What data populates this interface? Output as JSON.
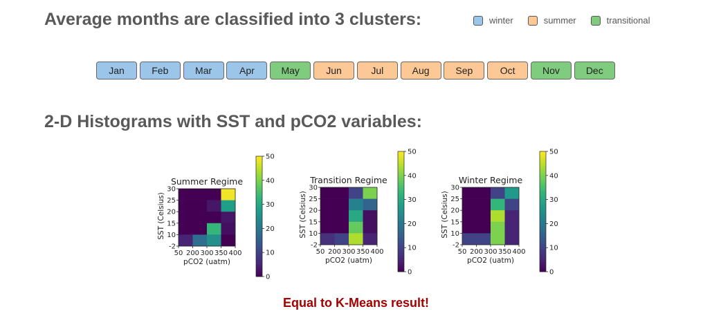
{
  "heading_clusters": "Average months are classified into 3 clusters:",
  "legend": [
    {
      "label": "winter",
      "color": "#9cc5ea"
    },
    {
      "label": "summer",
      "color": "#fcc896"
    },
    {
      "label": "transitional",
      "color": "#7fcc7f"
    }
  ],
  "months": [
    {
      "label": "Jan",
      "cluster": "winter"
    },
    {
      "label": "Feb",
      "cluster": "winter"
    },
    {
      "label": "Mar",
      "cluster": "winter"
    },
    {
      "label": "Apr",
      "cluster": "winter"
    },
    {
      "label": "May",
      "cluster": "transitional"
    },
    {
      "label": "Jun",
      "cluster": "summer"
    },
    {
      "label": "Jul",
      "cluster": "summer"
    },
    {
      "label": "Aug",
      "cluster": "summer"
    },
    {
      "label": "Sep",
      "cluster": "summer"
    },
    {
      "label": "Oct",
      "cluster": "summer"
    },
    {
      "label": "Nov",
      "cluster": "transitional"
    },
    {
      "label": "Dec",
      "cluster": "transitional"
    }
  ],
  "heading_hist": "2-D Histograms with SST and pCO2 variables:",
  "footer": "Equal to K-Means result!",
  "chart_data": [
    {
      "type": "heatmap",
      "title": "Summer Regime",
      "xlabel": "pCO2 (uatm)",
      "ylabel": "SST (Celsius)",
      "xticks": [
        "50",
        "200",
        "300",
        "350",
        "400"
      ],
      "yticks": [
        "-2",
        "10",
        "15",
        "20",
        "25",
        "30"
      ],
      "colorbar_ticks": [
        0,
        10,
        20,
        30,
        40,
        50
      ],
      "colorbar_range": [
        0,
        50
      ],
      "colormap": "viridis",
      "rows_top_to_bottom": [
        [
          0,
          0,
          0,
          49
        ],
        [
          0,
          0,
          3,
          28
        ],
        [
          0,
          0,
          0,
          3
        ],
        [
          0,
          0,
          33,
          2
        ],
        [
          5,
          18,
          25,
          0
        ]
      ]
    },
    {
      "type": "heatmap",
      "title": "Transition Regime",
      "xlabel": "pCO2 (uatm)",
      "ylabel": "SST (Celsius)",
      "xticks": [
        "50",
        "200",
        "300",
        "350",
        "400"
      ],
      "yticks": [
        "-2",
        "10",
        "15",
        "20",
        "25",
        "30"
      ],
      "colorbar_ticks": [
        0,
        10,
        20,
        30,
        40,
        50
      ],
      "colorbar_range": [
        0,
        50
      ],
      "colormap": "viridis",
      "rows_top_to_bottom": [
        [
          0,
          0,
          10,
          40
        ],
        [
          0,
          0,
          22,
          16
        ],
        [
          0,
          0,
          30,
          2
        ],
        [
          0,
          0,
          38,
          2
        ],
        [
          7,
          10,
          44,
          5
        ]
      ]
    },
    {
      "type": "heatmap",
      "title": "Winter Regime",
      "xlabel": "pCO2 (uatm)",
      "ylabel": "SST (Celsius)",
      "xticks": [
        "50",
        "200",
        "300",
        "350",
        "400"
      ],
      "yticks": [
        "-2",
        "10",
        "15",
        "20",
        "25",
        "30"
      ],
      "colorbar_ticks": [
        0,
        10,
        20,
        30,
        40,
        50
      ],
      "colorbar_range": [
        0,
        50
      ],
      "colormap": "viridis",
      "rows_top_to_bottom": [
        [
          0,
          0,
          10,
          27
        ],
        [
          0,
          0,
          33,
          10
        ],
        [
          0,
          0,
          44,
          5
        ],
        [
          0,
          0,
          40,
          5
        ],
        [
          10,
          10,
          40,
          5
        ]
      ]
    }
  ]
}
